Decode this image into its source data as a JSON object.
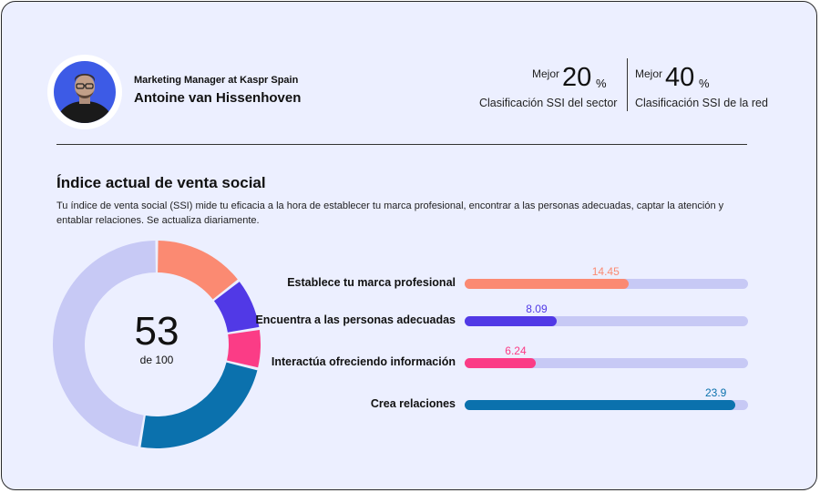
{
  "profile": {
    "subtitle": "Marketing Manager at Kaspr Spain",
    "name": "Antoine van Hissenhoven"
  },
  "stats": [
    {
      "prefix": "Mejor",
      "value": "20",
      "unit": "%",
      "caption": "Clasificación SSI del sector"
    },
    {
      "prefix": "Mejor",
      "value": "40",
      "unit": "%",
      "caption": "Clasificación SSI de la red"
    }
  ],
  "section": {
    "title": "Índice actual de venta social",
    "description": "Tu índice de venta social (SSI) mide tu eficacia a la hora de establecer tu marca profesional, encontrar a las personas adecuadas, captar la atención y entablar relaciones. Se actualiza diariamente."
  },
  "score": {
    "value": "53",
    "sub": "de 100"
  },
  "colors": {
    "card_bg": "#ecefff",
    "track": "#c7c9f5",
    "brand": "#fb8a72",
    "people": "#5139e6",
    "insight": "#fb3c86",
    "relations": "#0b71ad"
  },
  "chart_data": {
    "type": "bar",
    "orientation": "horizontal",
    "max": 25,
    "categories": [
      "Establece tu marca profesional",
      "Encuentra a las personas adecuadas",
      "Interactúa ofreciendo información",
      "Crea relaciones"
    ],
    "values": [
      14.45,
      8.09,
      6.24,
      23.9
    ],
    "labels": [
      "14.45",
      "8.09",
      "6.24",
      "23.9"
    ],
    "colors": [
      "#fb8a72",
      "#5139e6",
      "#fb3c86",
      "#0b71ad"
    ]
  }
}
